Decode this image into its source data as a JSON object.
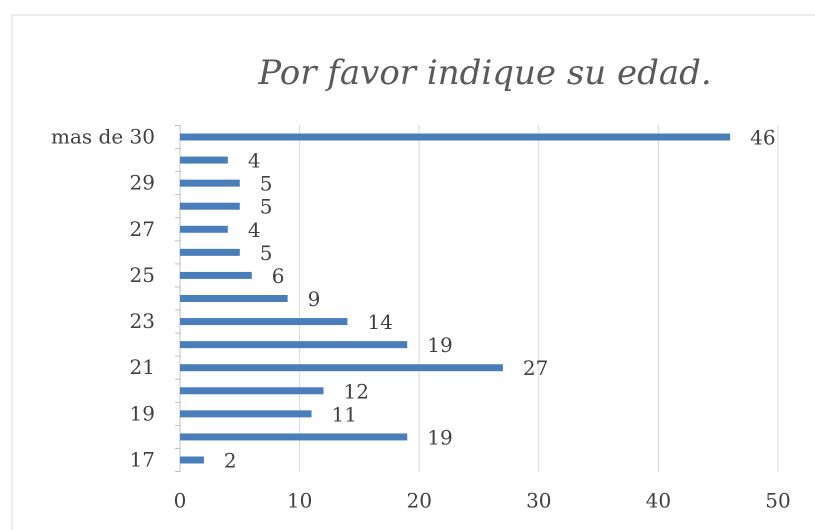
{
  "chart_data": {
    "type": "barh",
    "title": "Por favor indique su edad.",
    "categories": [
      "17",
      null,
      "19",
      null,
      "21",
      null,
      "23",
      null,
      "25",
      null,
      "27",
      null,
      "29",
      null,
      "mas de 30"
    ],
    "values": [
      2,
      19,
      11,
      12,
      27,
      19,
      14,
      9,
      6,
      5,
      4,
      5,
      5,
      4,
      46
    ],
    "color": "#4a7ebb",
    "xlim": [
      0,
      50
    ],
    "xticks": [
      0,
      10,
      20,
      30,
      40,
      50
    ],
    "grid": true
  }
}
